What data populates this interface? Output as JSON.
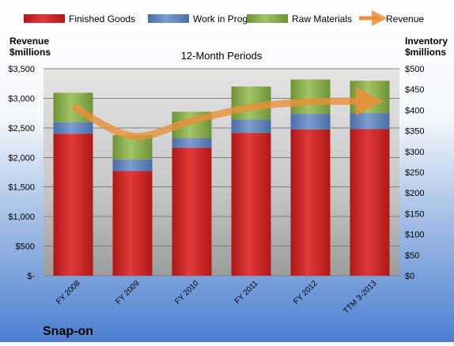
{
  "chart_data": {
    "type": "bar",
    "title": "12-Month Periods",
    "company": "Snap-on",
    "left_axis": {
      "label_line1": "Revenue",
      "label_line2": "$millions",
      "range": [
        0,
        3500
      ],
      "ticks": [
        {
          "value": 0,
          "label": "$-"
        },
        {
          "value": 500,
          "label": "$500"
        },
        {
          "value": 1000,
          "label": "$1,000"
        },
        {
          "value": 1500,
          "label": "$1,500"
        },
        {
          "value": 2000,
          "label": "$2,000"
        },
        {
          "value": 2500,
          "label": "$2,500"
        },
        {
          "value": 3000,
          "label": "$3,000"
        },
        {
          "value": 3500,
          "label": "$3,500"
        }
      ]
    },
    "right_axis": {
      "label_line1": "Inventory",
      "label_line2": "$millions",
      "range": [
        0,
        500
      ],
      "ticks": [
        {
          "value": 0,
          "label": "$0"
        },
        {
          "value": 50,
          "label": "$50"
        },
        {
          "value": 100,
          "label": "$100"
        },
        {
          "value": 150,
          "label": "$150"
        },
        {
          "value": 200,
          "label": "$200"
        },
        {
          "value": 250,
          "label": "$250"
        },
        {
          "value": 300,
          "label": "$300"
        },
        {
          "value": 350,
          "label": "$350"
        },
        {
          "value": 400,
          "label": "$400"
        },
        {
          "value": 450,
          "label": "$450"
        },
        {
          "value": 500,
          "label": "$500"
        }
      ]
    },
    "categories": [
      "FY 2008",
      "FY 2009",
      "FY 2010",
      "FY 2011",
      "FY 2012",
      "TTM 3-2013"
    ],
    "stacked_series": [
      {
        "name": "Finished Goods",
        "axis": "right",
        "color": "#d02a2a",
        "values": [
          343,
          253,
          309,
          345,
          353,
          354
        ]
      },
      {
        "name": "Work in Progress",
        "axis": "right",
        "color": "#5f81b9",
        "values": [
          28,
          28,
          23,
          32,
          38,
          39
        ]
      },
      {
        "name": "Raw Materials",
        "axis": "right",
        "color": "#8fb14f",
        "values": [
          71,
          59,
          64,
          80,
          83,
          78
        ]
      }
    ],
    "line_series": {
      "name": "Revenue",
      "axis": "left",
      "color": "#e8913a",
      "values": [
        2860,
        2360,
        2620,
        2850,
        2940,
        2950
      ]
    },
    "grid": true,
    "legend_position": "top"
  }
}
